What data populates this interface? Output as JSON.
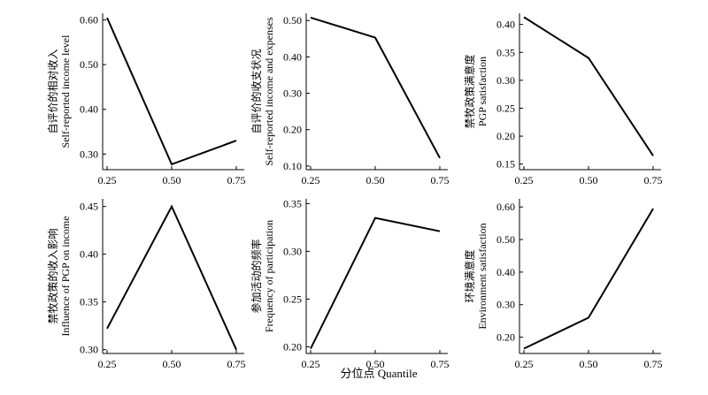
{
  "figure": {
    "xlabel": "分位点  Quantile"
  },
  "chart_data": [
    {
      "type": "line",
      "ylabel_zh": "自评价的相对收入",
      "ylabel_en": "Self-reported income level",
      "x": [
        0.25,
        0.5,
        0.75
      ],
      "x_ticks": [
        "0.25",
        "0.50",
        "0.75"
      ],
      "values": [
        0.605,
        0.277,
        0.33
      ],
      "y_ticks": [
        "0.30",
        "0.40",
        "0.50",
        "0.60"
      ],
      "ylim": [
        0.265,
        0.615
      ]
    },
    {
      "type": "line",
      "ylabel_zh": "自评价的收支状况",
      "ylabel_en": "Self-reported income and expenses",
      "x": [
        0.25,
        0.5,
        0.75
      ],
      "x_ticks": [
        "0.25",
        "0.50",
        "0.75"
      ],
      "values": [
        0.508,
        0.453,
        0.122
      ],
      "y_ticks": [
        "0.10",
        "0.20",
        "0.30",
        "0.40",
        "0.50"
      ],
      "ylim": [
        0.09,
        0.52
      ]
    },
    {
      "type": "line",
      "ylabel_zh": "禁牧政策满意度",
      "ylabel_en": "PGP satisfaction",
      "x": [
        0.25,
        0.5,
        0.75
      ],
      "x_ticks": [
        "0.25",
        "0.50",
        "0.75"
      ],
      "values": [
        0.413,
        0.34,
        0.165
      ],
      "y_ticks": [
        "0.15",
        "0.20",
        "0.25",
        "0.30",
        "0.35",
        "0.40"
      ],
      "ylim": [
        0.14,
        0.42
      ]
    },
    {
      "type": "line",
      "ylabel_zh": "禁牧政策的收入影响",
      "ylabel_en": "Influence of PGP on income",
      "x": [
        0.25,
        0.5,
        0.75
      ],
      "x_ticks": [
        "0.25",
        "0.50",
        "0.75"
      ],
      "values": [
        0.322,
        0.45,
        0.3
      ],
      "y_ticks": [
        "0.30",
        "0.35",
        "0.40",
        "0.45"
      ],
      "ylim": [
        0.296,
        0.458
      ]
    },
    {
      "type": "line",
      "ylabel_zh": "参加活动的频率",
      "ylabel_en": "Frequency of participation",
      "x": [
        0.25,
        0.5,
        0.75
      ],
      "x_ticks": [
        "0.25",
        "0.50",
        "0.75"
      ],
      "values": [
        0.198,
        0.335,
        0.321
      ],
      "y_ticks": [
        "0.20",
        "0.25",
        "0.30",
        "0.35"
      ],
      "ylim": [
        0.193,
        0.355
      ]
    },
    {
      "type": "line",
      "ylabel_zh": "环境满意度",
      "ylabel_en": "Environment satisfaction",
      "x": [
        0.25,
        0.5,
        0.75
      ],
      "x_ticks": [
        "0.25",
        "0.50",
        "0.75"
      ],
      "values": [
        0.165,
        0.26,
        0.595
      ],
      "y_ticks": [
        "0.20",
        "0.30",
        "0.40",
        "0.50",
        "0.60"
      ],
      "ylim": [
        0.15,
        0.625
      ]
    }
  ]
}
